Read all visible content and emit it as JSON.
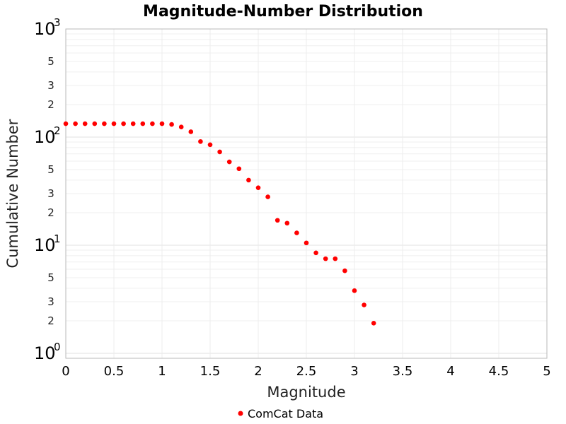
{
  "chart_data": {
    "type": "scatter",
    "title": "Magnitude-Number Distribution",
    "xlabel": "Magnitude",
    "ylabel": "Cumulative Number",
    "xlim": [
      0,
      5
    ],
    "ylim": [
      0.9,
      1000
    ],
    "yscale": "log",
    "grid": true,
    "legend": "bottom-center",
    "x_ticks": [
      "0",
      "0.5",
      "1",
      "1.5",
      "2",
      "2.5",
      "3",
      "3.5",
      "4",
      "4.5",
      "5"
    ],
    "y_major_ticks": [
      {
        "base": "10",
        "exp": "0"
      },
      {
        "base": "10",
        "exp": "1"
      },
      {
        "base": "10",
        "exp": "2"
      },
      {
        "base": "10",
        "exp": "3"
      }
    ],
    "y_minor_labels": [
      "2",
      "3",
      "5"
    ],
    "series": [
      {
        "name": "ComCat Data",
        "color": "#ff0000",
        "x": [
          0,
          0.1,
          0.2,
          0.3,
          0.4,
          0.5,
          0.6,
          0.7,
          0.8,
          0.9,
          1.0,
          1.1,
          1.2,
          1.3,
          1.4,
          1.5,
          1.6,
          1.7,
          1.8,
          1.9,
          2.0,
          2.1,
          2.2,
          2.3,
          2.4,
          2.5,
          2.6,
          2.7,
          2.8,
          2.9,
          3.0,
          3.1,
          3.2
        ],
        "y": [
          133,
          133,
          133,
          133,
          133,
          133,
          133,
          133,
          133,
          133,
          133,
          131,
          124,
          112,
          91,
          85,
          73,
          59,
          51,
          40,
          34,
          28,
          17,
          16,
          13,
          10.5,
          8.5,
          7.5,
          7.5,
          5.8,
          3.8,
          2.8,
          1.9
        ]
      }
    ]
  }
}
